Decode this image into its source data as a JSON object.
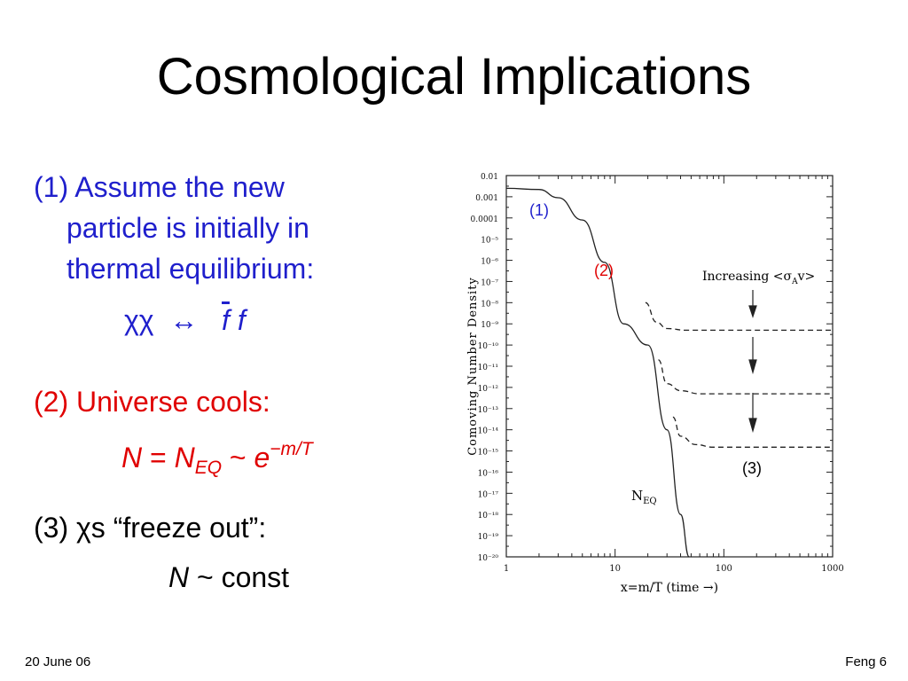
{
  "slide": {
    "title": "Cosmological Implications",
    "bullet1": {
      "label": "(1) Assume the new",
      "line2": "particle is initially in",
      "line3": "thermal equilibrium:",
      "eq_lhs": "χχ",
      "eq_arrow": "↔",
      "eq_fbar": "f",
      "eq_f": "f"
    },
    "bullet2": {
      "label": "(2) Universe cools:",
      "eq_N": "N",
      "eq_equals": " = ",
      "eq_NEQ": "N",
      "eq_NEQ_sub": "EQ",
      "eq_tilde": " ~ ",
      "eq_e": "e",
      "eq_exp": "−m/T"
    },
    "bullet3": {
      "label": "(3) χs “freeze out”:",
      "eq_N": "N",
      "eq_rest": " ~ const"
    },
    "footer": {
      "date": "20 June 06",
      "page": "Feng 6"
    }
  },
  "chart_data": {
    "type": "line",
    "xlabel": "x=m/T (time →)",
    "ylabel": "Comoving Number Density",
    "xscale": "log",
    "yscale": "log",
    "xlim": [
      1,
      1000
    ],
    "ylim": [
      1e-20,
      0.01
    ],
    "x_ticks": [
      "1",
      "10",
      "100",
      "1000"
    ],
    "y_ticks": [
      "0.01",
      "0.001",
      "0.0001",
      "10⁻⁵",
      "10⁻⁶",
      "10⁻⁷",
      "10⁻⁸",
      "10⁻⁹",
      "10⁻¹⁰",
      "10⁻¹¹",
      "10⁻¹²",
      "10⁻¹³",
      "10⁻¹⁴",
      "10⁻¹⁵",
      "10⁻¹⁶",
      "10⁻¹⁷",
      "10⁻¹⁸",
      "10⁻¹⁹",
      "10⁻²⁰"
    ],
    "neq_label": "N",
    "neq_sub": "EQ",
    "increasing_label": "Increasing <σ",
    "increasing_sub": "A",
    "increasing_end": "v>",
    "series": [
      {
        "style": "solid",
        "points": [
          [
            1,
            0.0025
          ],
          [
            2,
            0.0022
          ],
          [
            3,
            0.0009
          ],
          [
            5,
            8e-05
          ],
          [
            8,
            8e-07
          ],
          [
            12,
            1e-09
          ],
          [
            20,
            1e-10
          ],
          [
            30,
            1e-14
          ],
          [
            40,
            1e-18
          ],
          [
            48,
            1e-20
          ]
        ]
      },
      {
        "style": "dashed",
        "points": [
          [
            19,
            1e-08
          ],
          [
            24,
            1.2e-09
          ],
          [
            30,
            6e-10
          ],
          [
            45,
            5e-10
          ],
          [
            100,
            5e-10
          ],
          [
            1000,
            5e-10
          ]
        ]
      },
      {
        "style": "dashed",
        "points": [
          [
            25,
            2e-11
          ],
          [
            30,
            1.5e-12
          ],
          [
            40,
            7e-13
          ],
          [
            60,
            5e-13
          ],
          [
            200,
            5e-13
          ],
          [
            1000,
            5e-13
          ]
        ]
      },
      {
        "style": "dashed",
        "points": [
          [
            34,
            4e-14
          ],
          [
            40,
            5e-15
          ],
          [
            55,
            2e-15
          ],
          [
            80,
            1.5e-15
          ],
          [
            300,
            1.5e-15
          ],
          [
            1000,
            1.5e-15
          ]
        ]
      }
    ],
    "annotations": [
      {
        "text": "(1)",
        "color": "#1f1fcc"
      },
      {
        "text": "(2)",
        "color": "#e00000"
      },
      {
        "text": "(3)",
        "color": "#000000"
      }
    ]
  }
}
